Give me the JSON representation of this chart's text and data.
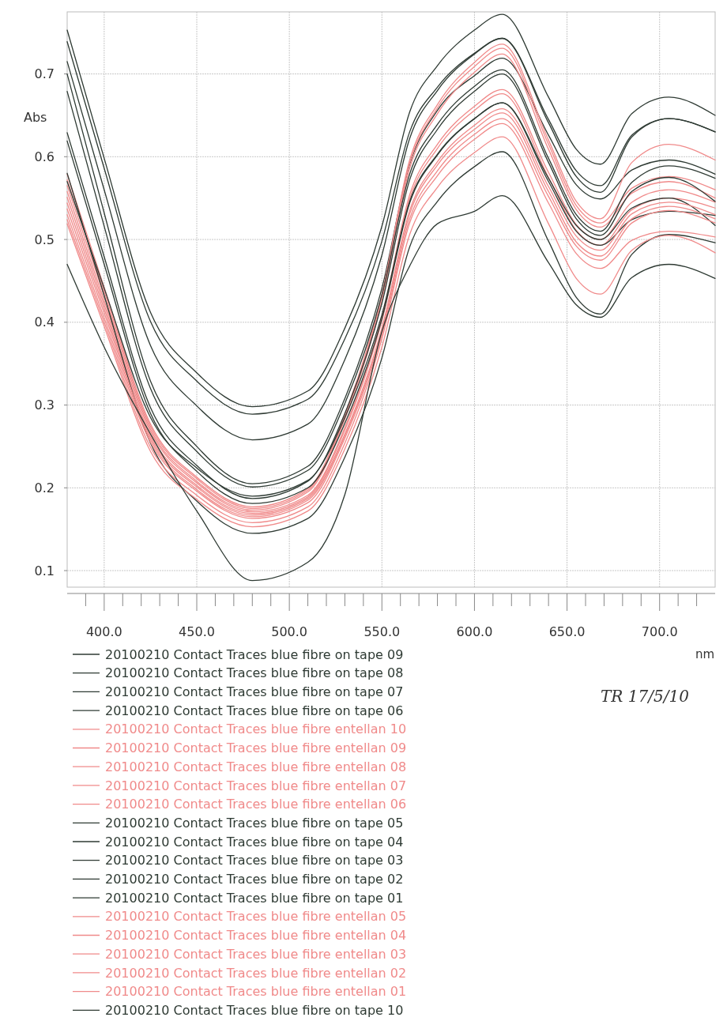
{
  "chart_data": {
    "type": "line",
    "xlabel": "nm",
    "ylabel": "Abs",
    "annotations": [
      "TR 17/5/10"
    ],
    "xlim": [
      380,
      730
    ],
    "ylim": [
      0.08,
      0.775
    ],
    "xticks": [
      {
        "value": 390,
        "label": null
      },
      {
        "value": 400,
        "label": "400.0"
      },
      {
        "value": 410,
        "label": null
      },
      {
        "value": 420,
        "label": null
      },
      {
        "value": 430,
        "label": null
      },
      {
        "value": 440,
        "label": null
      },
      {
        "value": 450,
        "label": "450.0"
      },
      {
        "value": 460,
        "label": null
      },
      {
        "value": 470,
        "label": null
      },
      {
        "value": 480,
        "label": null
      },
      {
        "value": 490,
        "label": null
      },
      {
        "value": 500,
        "label": "500.0"
      },
      {
        "value": 510,
        "label": null
      },
      {
        "value": 520,
        "label": null
      },
      {
        "value": 530,
        "label": null
      },
      {
        "value": 540,
        "label": null
      },
      {
        "value": 550,
        "label": "550.0"
      },
      {
        "value": 560,
        "label": null
      },
      {
        "value": 570,
        "label": null
      },
      {
        "value": 580,
        "label": null
      },
      {
        "value": 590,
        "label": null
      },
      {
        "value": 600,
        "label": "600.0"
      },
      {
        "value": 610,
        "label": null
      },
      {
        "value": 620,
        "label": null
      },
      {
        "value": 630,
        "label": null
      },
      {
        "value": 640,
        "label": null
      },
      {
        "value": 650,
        "label": "650.0"
      },
      {
        "value": 660,
        "label": null
      },
      {
        "value": 670,
        "label": null
      },
      {
        "value": 680,
        "label": null
      },
      {
        "value": 690,
        "label": null
      },
      {
        "value": 700,
        "label": "700.0"
      },
      {
        "value": 710,
        "label": null
      },
      {
        "value": 720,
        "label": null
      }
    ],
    "yticks": [
      0.1,
      0.2,
      0.3,
      0.4,
      0.5,
      0.6,
      0.7
    ],
    "grid": true,
    "legend": "bottom",
    "marker": "none",
    "line_style": "solid",
    "x": [
      380,
      400,
      425,
      450,
      480,
      510,
      530,
      550,
      565,
      580,
      600,
      615,
      640,
      655,
      668,
      685,
      705,
      730
    ],
    "series": [
      {
        "name": "20100210 Contact Traces blue fibre on tape 09",
        "color": "#2e3a33",
        "values": [
          0.753,
          0.598,
          0.412,
          0.339,
          0.298,
          0.317,
          0.393,
          0.516,
          0.654,
          0.71,
          0.753,
          0.772,
          0.672,
          0.609,
          0.591,
          0.652,
          0.672,
          0.65
        ]
      },
      {
        "name": "20100210 Contact Traces blue fibre on tape 08",
        "color": "#2e3a33",
        "values": [
          0.739,
          0.586,
          0.401,
          0.329,
          0.289,
          0.307,
          0.38,
          0.498,
          0.63,
          0.684,
          0.725,
          0.743,
          0.645,
          0.583,
          0.565,
          0.626,
          0.646,
          0.63
        ]
      },
      {
        "name": "20100210 Contact Traces blue fibre on tape 07",
        "color": "#2e3a33",
        "values": [
          0.715,
          0.56,
          0.372,
          0.299,
          0.258,
          0.277,
          0.355,
          0.481,
          0.622,
          0.68,
          0.724,
          0.743,
          0.641,
          0.576,
          0.557,
          0.624,
          0.646,
          0.63
        ]
      },
      {
        "name": "20100210 Contact Traces blue fibre on tape 06",
        "color": "#2e3a33",
        "values": [
          0.7,
          0.532,
          0.329,
          0.25,
          0.205,
          0.226,
          0.308,
          0.441,
          0.591,
          0.656,
          0.698,
          0.719,
          0.626,
          0.566,
          0.549,
          0.584,
          0.596,
          0.579
        ]
      },
      {
        "name": "20100210 Contact Traces blue fibre entellan 10",
        "color": "#f08a8a",
        "values": [
          0.579,
          0.442,
          0.277,
          0.213,
          0.177,
          0.199,
          0.289,
          0.434,
          0.596,
          0.663,
          0.714,
          0.736,
          0.62,
          0.546,
          0.525,
          0.593,
          0.615,
          0.596
        ]
      },
      {
        "name": "20100210 Contact Traces blue fibre entellan 09",
        "color": "#f08a8a",
        "values": [
          0.572,
          0.437,
          0.274,
          0.211,
          0.175,
          0.197,
          0.286,
          0.431,
          0.592,
          0.659,
          0.709,
          0.731,
          0.615,
          0.541,
          0.52,
          0.562,
          0.576,
          0.56
        ]
      },
      {
        "name": "20100210 Contact Traces blue fibre entellan 08",
        "color": "#f08a8a",
        "values": [
          0.565,
          0.432,
          0.271,
          0.208,
          0.173,
          0.195,
          0.283,
          0.426,
          0.586,
          0.652,
          0.702,
          0.724,
          0.609,
          0.536,
          0.515,
          0.556,
          0.57,
          0.55
        ]
      },
      {
        "name": "20100210 Contact Traces blue fibre entellan 07",
        "color": "#f08a8a",
        "values": [
          0.558,
          0.426,
          0.268,
          0.206,
          0.171,
          0.191,
          0.273,
          0.406,
          0.554,
          0.615,
          0.661,
          0.681,
          0.581,
          0.518,
          0.5,
          0.545,
          0.56,
          0.545
        ]
      },
      {
        "name": "20100210 Contact Traces blue fibre entellan 06",
        "color": "#f08a8a",
        "values": [
          0.551,
          0.421,
          0.264,
          0.203,
          0.169,
          0.189,
          0.27,
          0.402,
          0.549,
          0.61,
          0.656,
          0.676,
          0.575,
          0.511,
          0.493,
          0.536,
          0.55,
          0.538
        ]
      },
      {
        "name": "20100210 Contact Traces blue fibre on tape 05",
        "color": "#2e3a33",
        "values": [
          0.679,
          0.516,
          0.32,
          0.244,
          0.201,
          0.221,
          0.302,
          0.433,
          0.579,
          0.639,
          0.685,
          0.705,
          0.598,
          0.53,
          0.51,
          0.569,
          0.589,
          0.574
        ]
      },
      {
        "name": "20100210 Contact Traces blue fibre on tape 04",
        "color": "#2e3a33",
        "values": [
          0.629,
          0.479,
          0.297,
          0.227,
          0.187,
          0.208,
          0.29,
          0.423,
          0.572,
          0.633,
          0.679,
          0.7,
          0.593,
          0.525,
          0.505,
          0.558,
          0.575,
          0.546
        ]
      },
      {
        "name": "20100210 Contact Traces blue fibre on tape 03",
        "color": "#2e3a33",
        "values": [
          0.619,
          0.47,
          0.29,
          0.22,
          0.181,
          0.2,
          0.278,
          0.404,
          0.544,
          0.602,
          0.646,
          0.665,
          0.57,
          0.51,
          0.493,
          0.524,
          0.534,
          0.529
        ]
      },
      {
        "name": "20100210 Contact Traces blue fibre on tape 02",
        "color": "#2e3a33",
        "values": [
          0.57,
          0.441,
          0.285,
          0.224,
          0.19,
          0.209,
          0.285,
          0.409,
          0.546,
          0.603,
          0.646,
          0.665,
          0.574,
          0.517,
          0.5,
          0.538,
          0.55,
          0.517
        ]
      },
      {
        "name": "20100210 Contact Traces blue fibre on tape 01",
        "color": "#2e3a33",
        "values": [
          0.58,
          0.432,
          0.254,
          0.184,
          0.145,
          0.163,
          0.237,
          0.357,
          0.491,
          0.546,
          0.588,
          0.606,
          0.498,
          0.43,
          0.41,
          0.482,
          0.506,
          0.496
        ]
      },
      {
        "name": "20100210 Contact Traces blue fibre entellan 05",
        "color": "#f08a8a",
        "values": [
          0.544,
          0.416,
          0.261,
          0.201,
          0.167,
          0.187,
          0.265,
          0.393,
          0.535,
          0.594,
          0.638,
          0.658,
          0.564,
          0.504,
          0.487,
          0.531,
          0.545,
          0.53
        ]
      },
      {
        "name": "20100210 Contact Traces blue fibre entellan 04",
        "color": "#f08a8a",
        "values": [
          0.537,
          0.411,
          0.258,
          0.198,
          0.165,
          0.185,
          0.263,
          0.389,
          0.531,
          0.59,
          0.633,
          0.653,
          0.558,
          0.497,
          0.48,
          0.525,
          0.54,
          0.525
        ]
      },
      {
        "name": "20100210 Contact Traces blue fibre entellan 03",
        "color": "#f08a8a",
        "values": [
          0.53,
          0.405,
          0.255,
          0.196,
          0.163,
          0.182,
          0.26,
          0.385,
          0.525,
          0.583,
          0.627,
          0.646,
          0.552,
          0.492,
          0.475,
          0.52,
          0.535,
          0.52
        ]
      },
      {
        "name": "20100210 Contact Traces blue fibre entellan 02",
        "color": "#f08a8a",
        "values": [
          0.524,
          0.4,
          0.249,
          0.191,
          0.158,
          0.177,
          0.254,
          0.38,
          0.52,
          0.577,
          0.621,
          0.64,
          0.544,
          0.483,
          0.465,
          0.499,
          0.51,
          0.503
        ]
      },
      {
        "name": "20100210 Contact Traces blue fibre entellan 01",
        "color": "#f08a8a",
        "values": [
          0.519,
          0.395,
          0.244,
          0.186,
          0.153,
          0.172,
          0.247,
          0.37,
          0.506,
          0.563,
          0.605,
          0.624,
          0.519,
          0.453,
          0.434,
          0.487,
          0.505,
          0.484
        ]
      },
      {
        "name": "20100210 Contact Traces blue fibre on tape 10",
        "color": "#2e3a33",
        "values": [
          0.47,
          0.37,
          0.265,
          0.172,
          0.088,
          0.11,
          0.192,
          0.389,
          0.468,
          0.519,
          0.534,
          0.553,
          0.472,
          0.421,
          0.406,
          0.454,
          0.47,
          0.453
        ]
      }
    ]
  }
}
